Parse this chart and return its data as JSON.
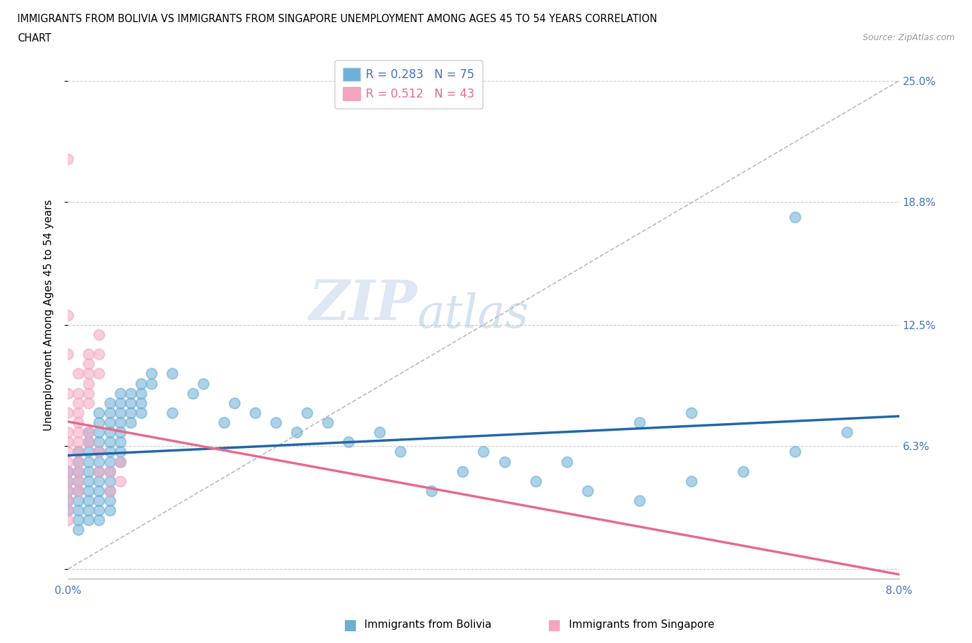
{
  "title_line1": "IMMIGRANTS FROM BOLIVIA VS IMMIGRANTS FROM SINGAPORE UNEMPLOYMENT AMONG AGES 45 TO 54 YEARS CORRELATION",
  "title_line2": "CHART",
  "source_text": "Source: ZipAtlas.com",
  "ylabel": "Unemployment Among Ages 45 to 54 years",
  "xlim": [
    0.0,
    0.08
  ],
  "ylim": [
    -0.005,
    0.265
  ],
  "bolivia_color": "#6baed6",
  "singapore_color": "#f4a6c0",
  "watermark_zip": "ZIP",
  "watermark_atlas": "atlas",
  "bolivia_points": [
    [
      0.0,
      0.05
    ],
    [
      0.0,
      0.045
    ],
    [
      0.0,
      0.04
    ],
    [
      0.0,
      0.035
    ],
    [
      0.0,
      0.03
    ],
    [
      0.001,
      0.06
    ],
    [
      0.001,
      0.055
    ],
    [
      0.001,
      0.05
    ],
    [
      0.001,
      0.045
    ],
    [
      0.001,
      0.04
    ],
    [
      0.001,
      0.035
    ],
    [
      0.001,
      0.03
    ],
    [
      0.001,
      0.025
    ],
    [
      0.001,
      0.02
    ],
    [
      0.002,
      0.07
    ],
    [
      0.002,
      0.065
    ],
    [
      0.002,
      0.06
    ],
    [
      0.002,
      0.055
    ],
    [
      0.002,
      0.05
    ],
    [
      0.002,
      0.045
    ],
    [
      0.002,
      0.04
    ],
    [
      0.002,
      0.035
    ],
    [
      0.002,
      0.03
    ],
    [
      0.002,
      0.025
    ],
    [
      0.003,
      0.08
    ],
    [
      0.003,
      0.075
    ],
    [
      0.003,
      0.07
    ],
    [
      0.003,
      0.065
    ],
    [
      0.003,
      0.06
    ],
    [
      0.003,
      0.055
    ],
    [
      0.003,
      0.05
    ],
    [
      0.003,
      0.045
    ],
    [
      0.003,
      0.04
    ],
    [
      0.003,
      0.035
    ],
    [
      0.003,
      0.03
    ],
    [
      0.003,
      0.025
    ],
    [
      0.004,
      0.085
    ],
    [
      0.004,
      0.08
    ],
    [
      0.004,
      0.075
    ],
    [
      0.004,
      0.07
    ],
    [
      0.004,
      0.065
    ],
    [
      0.004,
      0.06
    ],
    [
      0.004,
      0.055
    ],
    [
      0.004,
      0.05
    ],
    [
      0.004,
      0.045
    ],
    [
      0.004,
      0.04
    ],
    [
      0.004,
      0.035
    ],
    [
      0.004,
      0.03
    ],
    [
      0.005,
      0.09
    ],
    [
      0.005,
      0.085
    ],
    [
      0.005,
      0.08
    ],
    [
      0.005,
      0.075
    ],
    [
      0.005,
      0.07
    ],
    [
      0.005,
      0.065
    ],
    [
      0.005,
      0.06
    ],
    [
      0.005,
      0.055
    ],
    [
      0.006,
      0.09
    ],
    [
      0.006,
      0.085
    ],
    [
      0.006,
      0.08
    ],
    [
      0.006,
      0.075
    ],
    [
      0.007,
      0.095
    ],
    [
      0.007,
      0.09
    ],
    [
      0.007,
      0.085
    ],
    [
      0.007,
      0.08
    ],
    [
      0.008,
      0.1
    ],
    [
      0.008,
      0.095
    ],
    [
      0.01,
      0.1
    ],
    [
      0.01,
      0.08
    ],
    [
      0.012,
      0.09
    ],
    [
      0.013,
      0.095
    ],
    [
      0.015,
      0.075
    ],
    [
      0.016,
      0.085
    ],
    [
      0.018,
      0.08
    ],
    [
      0.02,
      0.075
    ],
    [
      0.022,
      0.07
    ],
    [
      0.023,
      0.08
    ],
    [
      0.025,
      0.075
    ],
    [
      0.027,
      0.065
    ],
    [
      0.03,
      0.07
    ],
    [
      0.032,
      0.06
    ],
    [
      0.035,
      0.04
    ],
    [
      0.038,
      0.05
    ],
    [
      0.04,
      0.06
    ],
    [
      0.042,
      0.055
    ],
    [
      0.045,
      0.045
    ],
    [
      0.048,
      0.055
    ],
    [
      0.05,
      0.04
    ],
    [
      0.055,
      0.035
    ],
    [
      0.06,
      0.045
    ],
    [
      0.065,
      0.05
    ],
    [
      0.07,
      0.06
    ],
    [
      0.075,
      0.07
    ],
    [
      0.055,
      0.075
    ],
    [
      0.06,
      0.08
    ],
    [
      0.07,
      0.18
    ]
  ],
  "singapore_points": [
    [
      0.0,
      0.21
    ],
    [
      0.0,
      0.13
    ],
    [
      0.0,
      0.11
    ],
    [
      0.0,
      0.09
    ],
    [
      0.0,
      0.08
    ],
    [
      0.0,
      0.07
    ],
    [
      0.0,
      0.065
    ],
    [
      0.0,
      0.06
    ],
    [
      0.0,
      0.055
    ],
    [
      0.0,
      0.05
    ],
    [
      0.0,
      0.045
    ],
    [
      0.0,
      0.04
    ],
    [
      0.0,
      0.035
    ],
    [
      0.0,
      0.03
    ],
    [
      0.0,
      0.025
    ],
    [
      0.001,
      0.1
    ],
    [
      0.001,
      0.09
    ],
    [
      0.001,
      0.085
    ],
    [
      0.001,
      0.08
    ],
    [
      0.001,
      0.075
    ],
    [
      0.001,
      0.07
    ],
    [
      0.001,
      0.065
    ],
    [
      0.001,
      0.06
    ],
    [
      0.001,
      0.055
    ],
    [
      0.001,
      0.05
    ],
    [
      0.001,
      0.045
    ],
    [
      0.001,
      0.04
    ],
    [
      0.002,
      0.11
    ],
    [
      0.002,
      0.105
    ],
    [
      0.002,
      0.1
    ],
    [
      0.002,
      0.095
    ],
    [
      0.002,
      0.09
    ],
    [
      0.002,
      0.085
    ],
    [
      0.002,
      0.07
    ],
    [
      0.002,
      0.065
    ],
    [
      0.003,
      0.12
    ],
    [
      0.003,
      0.11
    ],
    [
      0.003,
      0.1
    ],
    [
      0.003,
      0.06
    ],
    [
      0.003,
      0.05
    ],
    [
      0.004,
      0.05
    ],
    [
      0.004,
      0.04
    ],
    [
      0.005,
      0.055
    ],
    [
      0.005,
      0.045
    ]
  ]
}
